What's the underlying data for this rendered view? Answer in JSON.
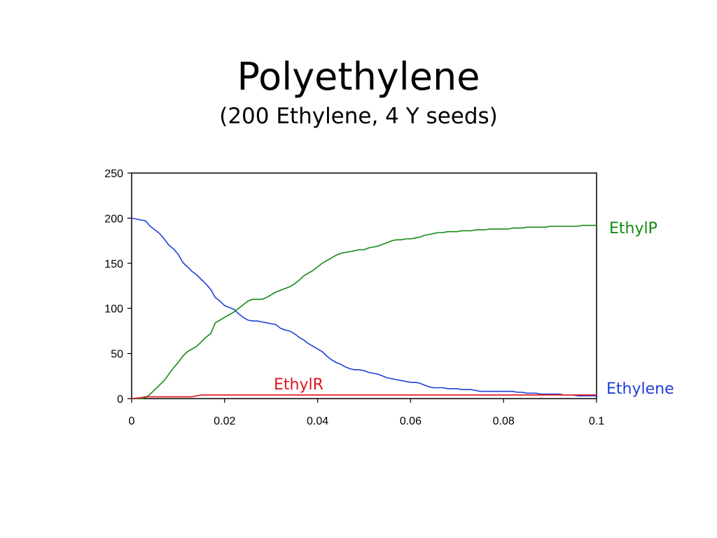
{
  "slide": {
    "title": "Polyethylene",
    "subtitle": "(200 Ethylene, 4 Y seeds)"
  },
  "chart_data": {
    "type": "line",
    "title": "Polyethylene",
    "subtitle": "(200 Ethylene, 4 Y seeds)",
    "xlabel": "",
    "ylabel": "",
    "xlim": [
      0,
      0.1
    ],
    "ylim": [
      0,
      250
    ],
    "x_ticks": [
      0,
      0.02,
      0.04,
      0.06,
      0.08,
      0.1
    ],
    "x_tick_labels": [
      "0",
      "0.02",
      "0.04",
      "0.06",
      "0.08",
      "0.1"
    ],
    "y_ticks": [
      0,
      50,
      100,
      150,
      200,
      250
    ],
    "y_tick_labels": [
      "0",
      "50",
      "100",
      "150",
      "200",
      "250"
    ],
    "grid": false,
    "legend": "inline labels",
    "series": [
      {
        "name": "Ethylene",
        "color": "#1f3fd9",
        "x": [
          0,
          0.002,
          0.003,
          0.004,
          0.005,
          0.006,
          0.007,
          0.008,
          0.009,
          0.01,
          0.011,
          0.012,
          0.013,
          0.014,
          0.015,
          0.016,
          0.017,
          0.018,
          0.019,
          0.02,
          0.021,
          0.022,
          0.023,
          0.024,
          0.025,
          0.026,
          0.027,
          0.028,
          0.029,
          0.03,
          0.031,
          0.032,
          0.033,
          0.034,
          0.035,
          0.036,
          0.037,
          0.038,
          0.039,
          0.04,
          0.041,
          0.042,
          0.043,
          0.044,
          0.045,
          0.046,
          0.047,
          0.048,
          0.049,
          0.05,
          0.051,
          0.052,
          0.053,
          0.054,
          0.055,
          0.056,
          0.057,
          0.058,
          0.059,
          0.06,
          0.061,
          0.062,
          0.063,
          0.064,
          0.065,
          0.066,
          0.067,
          0.068,
          0.069,
          0.07,
          0.071,
          0.072,
          0.073,
          0.074,
          0.075,
          0.076,
          0.077,
          0.078,
          0.079,
          0.08,
          0.081,
          0.082,
          0.083,
          0.084,
          0.085,
          0.086,
          0.087,
          0.088,
          0.089,
          0.09,
          0.091,
          0.092,
          0.093,
          0.094,
          0.095,
          0.096,
          0.097,
          0.098,
          0.099,
          0.1
        ],
        "values": [
          200,
          198,
          197,
          191,
          187,
          183,
          177,
          170,
          166,
          160,
          151,
          146,
          141,
          137,
          132,
          127,
          121,
          112,
          108,
          103,
          101,
          99,
          94,
          90,
          87,
          86,
          86,
          85,
          84,
          83,
          82,
          78,
          76,
          75,
          72,
          68,
          65,
          61,
          58,
          55,
          52,
          47,
          43,
          40,
          38,
          35,
          33,
          32,
          32,
          31,
          29,
          28,
          27,
          25,
          23,
          22,
          21,
          20,
          19,
          18,
          18,
          17,
          15,
          13,
          12,
          12,
          12,
          11,
          11,
          11,
          10,
          10,
          10,
          9,
          8,
          8,
          8,
          8,
          8,
          8,
          8,
          8,
          7,
          7,
          6,
          6,
          6,
          5,
          5,
          5,
          5,
          5,
          4,
          4,
          4,
          3,
          3,
          3,
          3,
          3
        ]
      },
      {
        "name": "EthylP",
        "color": "#138a13",
        "x": [
          0,
          0.002,
          0.003,
          0.004,
          0.005,
          0.006,
          0.007,
          0.008,
          0.009,
          0.01,
          0.011,
          0.012,
          0.013,
          0.014,
          0.015,
          0.016,
          0.017,
          0.018,
          0.019,
          0.02,
          0.021,
          0.022,
          0.023,
          0.024,
          0.025,
          0.026,
          0.027,
          0.028,
          0.029,
          0.03,
          0.031,
          0.032,
          0.033,
          0.034,
          0.035,
          0.036,
          0.037,
          0.038,
          0.039,
          0.04,
          0.041,
          0.042,
          0.043,
          0.044,
          0.045,
          0.046,
          0.047,
          0.048,
          0.049,
          0.05,
          0.051,
          0.052,
          0.053,
          0.054,
          0.055,
          0.056,
          0.057,
          0.058,
          0.059,
          0.06,
          0.061,
          0.062,
          0.063,
          0.064,
          0.065,
          0.066,
          0.067,
          0.068,
          0.069,
          0.07,
          0.071,
          0.072,
          0.073,
          0.074,
          0.075,
          0.076,
          0.077,
          0.078,
          0.079,
          0.08,
          0.081,
          0.082,
          0.083,
          0.084,
          0.085,
          0.086,
          0.087,
          0.088,
          0.089,
          0.09,
          0.091,
          0.092,
          0.093,
          0.094,
          0.095,
          0.096,
          0.097,
          0.098,
          0.099,
          0.1
        ],
        "values": [
          0,
          0,
          1,
          5,
          10,
          15,
          20,
          27,
          34,
          40,
          47,
          52,
          55,
          58,
          63,
          68,
          72,
          84,
          87,
          90,
          93,
          96,
          100,
          104,
          108,
          110,
          110,
          110,
          112,
          115,
          118,
          120,
          122,
          124,
          127,
          131,
          136,
          139,
          142,
          146,
          150,
          153,
          156,
          159,
          161,
          162,
          163,
          164,
          165,
          165,
          167,
          168,
          169,
          171,
          173,
          175,
          176,
          176,
          177,
          177,
          178,
          179,
          181,
          182,
          183,
          184,
          184,
          185,
          185,
          185,
          186,
          186,
          186,
          187,
          187,
          187,
          188,
          188,
          188,
          188,
          188,
          189,
          189,
          189,
          190,
          190,
          190,
          190,
          190,
          191,
          191,
          191,
          191,
          191,
          191,
          191,
          192,
          192,
          192,
          192
        ]
      },
      {
        "name": "EthylR",
        "color": "#e0141c",
        "x": [
          0,
          0.002,
          0.003,
          0.013,
          0.015,
          0.1
        ],
        "values": [
          0,
          1,
          2,
          2,
          4,
          4
        ]
      }
    ],
    "label_colors": {
      "EthylP": "#138a13",
      "EthylR": "#e0141c",
      "Ethylene": "#1f3fd9"
    },
    "annotations": [
      "EthylP",
      "EthylR",
      "Ethylene"
    ]
  }
}
